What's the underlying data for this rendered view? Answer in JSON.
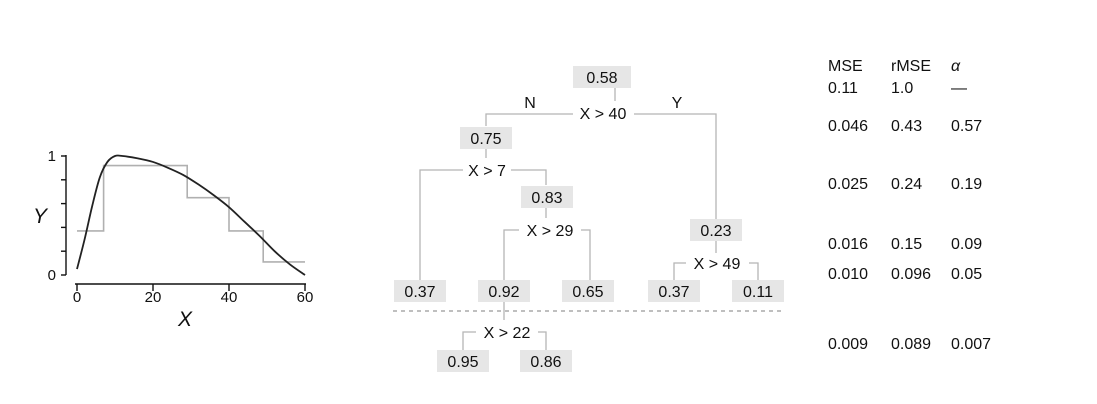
{
  "chart_data": {
    "type": "line",
    "xlabel": "X",
    "ylabel": "Y",
    "x_ticks": [
      0,
      20,
      40,
      60
    ],
    "y_ticks": [
      0,
      1
    ],
    "xlim": [
      0,
      60
    ],
    "ylim": [
      0,
      1
    ],
    "series": [
      {
        "kind": "smooth-curve",
        "x": [
          0,
          2,
          4,
          6,
          8,
          10,
          12,
          16,
          20,
          24,
          28,
          32,
          36,
          40,
          44,
          48,
          52,
          56,
          60
        ],
        "y": [
          0.05,
          0.3,
          0.58,
          0.82,
          0.95,
          1.0,
          1.0,
          0.98,
          0.95,
          0.9,
          0.84,
          0.76,
          0.67,
          0.57,
          0.45,
          0.33,
          0.2,
          0.09,
          0.0
        ]
      },
      {
        "kind": "step-fit",
        "steps": [
          {
            "x0": 0,
            "x1": 7,
            "y": 0.37
          },
          {
            "x0": 7,
            "x1": 29,
            "y": 0.92
          },
          {
            "x0": 29,
            "x1": 40,
            "y": 0.65
          },
          {
            "x0": 40,
            "x1": 49,
            "y": 0.37
          },
          {
            "x0": 49,
            "x1": 60,
            "y": 0.11
          }
        ]
      }
    ]
  },
  "tree": {
    "branch_no": "N",
    "branch_yes": "Y",
    "root_value": "0.58",
    "split_root": "X > 40",
    "left_value": "0.75",
    "split_left": "X > 7",
    "right_value": "0.23",
    "split_right": "X > 49",
    "mid_value": "0.83",
    "split_mid": "X > 29",
    "leaf_a": "0.37",
    "leaf_b": "0.92",
    "leaf_c": "0.65",
    "leaf_d": "0.37",
    "leaf_e": "0.11",
    "split_extra": "X > 22",
    "leaf_f": "0.95",
    "leaf_g": "0.86"
  },
  "table": {
    "headers": [
      "MSE",
      "rMSE",
      "α"
    ],
    "rows": [
      [
        "0.11",
        "1.0",
        "—"
      ],
      [
        "0.046",
        "0.43",
        "0.57"
      ],
      [
        "0.025",
        "0.24",
        "0.19"
      ],
      [
        "0.016",
        "0.15",
        "0.09"
      ],
      [
        "0.010",
        "0.096",
        "0.05"
      ],
      [
        "0.009",
        "0.089",
        "0.007"
      ]
    ]
  }
}
